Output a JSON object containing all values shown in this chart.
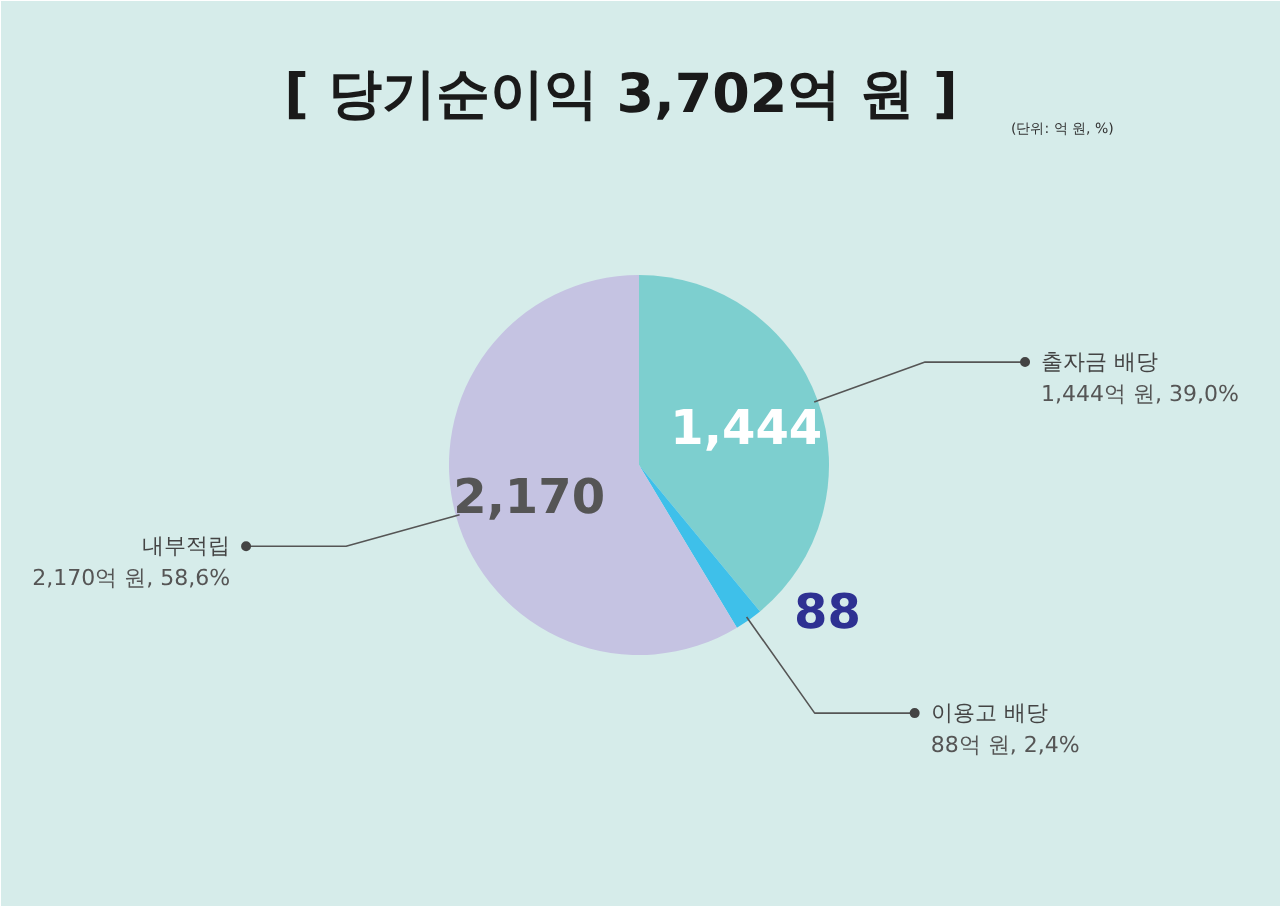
{
  "chart_data": {
    "type": "pie",
    "title": "[ 당기순이익 3,702억 원 ]",
    "subtitle": "(단위: 억 원, %)",
    "categories": [
      "출자금 배당",
      "이용고 배당",
      "내부적립"
    ],
    "values": [
      1444,
      88,
      2170
    ],
    "colors": [
      "#7dcfcf",
      "#3ec0ea",
      "#c5c3e2"
    ],
    "value_labels": [
      "1,444",
      "88",
      "2,170"
    ],
    "annotations": [
      "1,444억 원, 39,0%",
      "88억 원, 2,4%",
      "2,170억 원, 58,6%"
    ]
  }
}
